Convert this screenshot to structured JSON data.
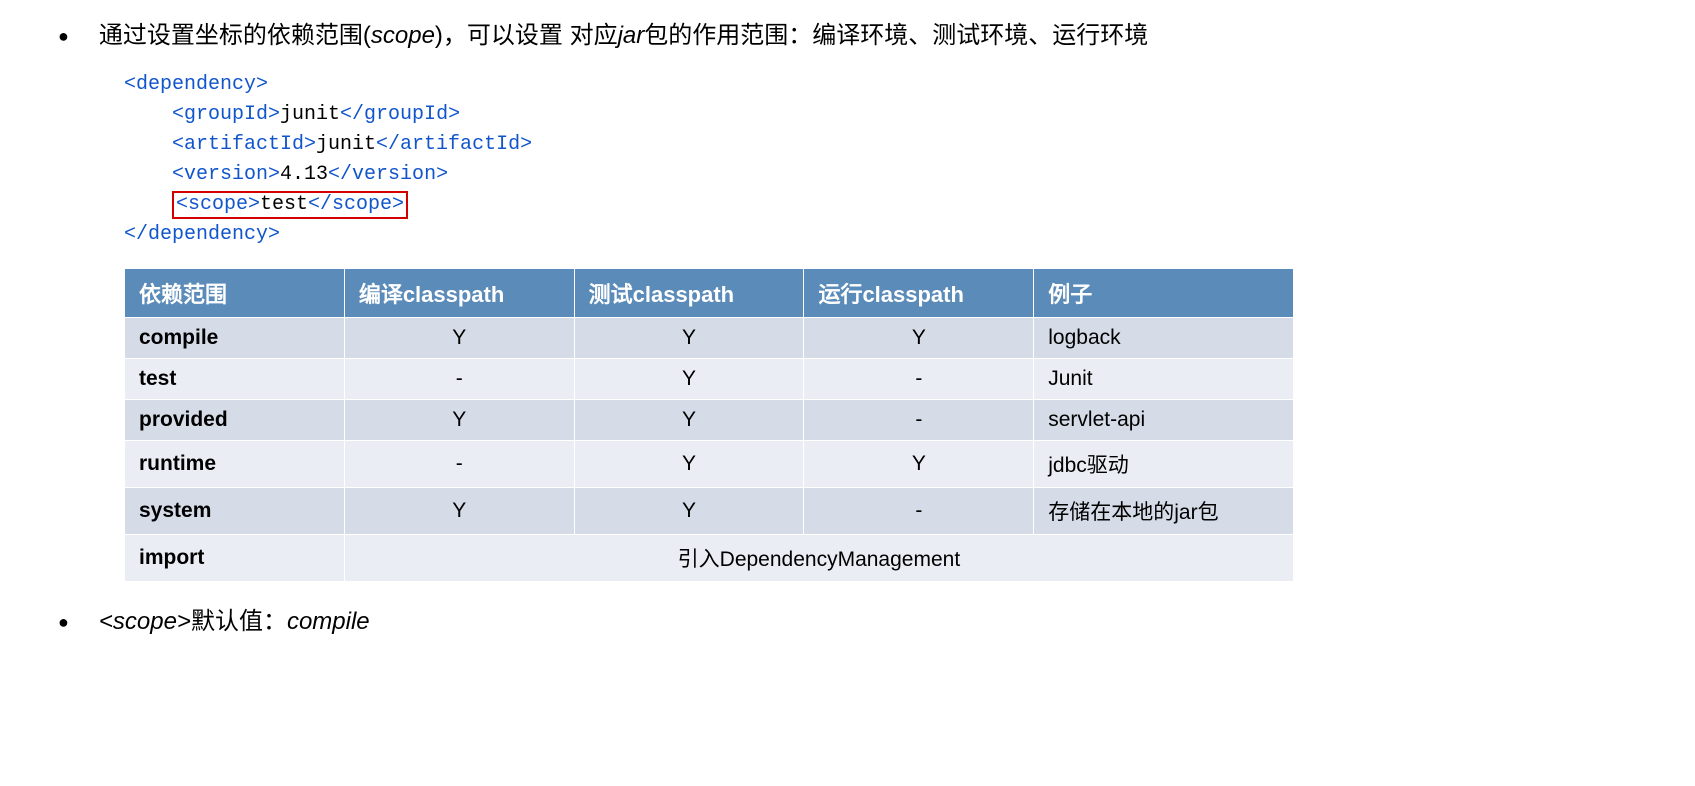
{
  "bullet1": {
    "text_pre": "通过设置坐标的依赖范围(",
    "scope_word": "scope",
    "text_mid": ")，可以设置 对应",
    "jar_word": "jar",
    "text_post": "包的作用范围：编译环境、测试环境、运行环境"
  },
  "code": {
    "line1_open": "<dependency>",
    "line2_pre": "    <groupId>",
    "line2_val": "junit",
    "line2_post": "</groupId>",
    "line3_pre": "    <artifactId>",
    "line3_val": "junit",
    "line3_post": "</artifactId>",
    "line4_pre": "    <version>",
    "line4_val": "4.13",
    "line4_post": "</version>",
    "line5_indent": "    ",
    "line5_open": "<scope>",
    "line5_val": "test",
    "line5_close": "</scope>",
    "line6_close": "</dependency>"
  },
  "table": {
    "headers": {
      "h0": "依赖范围",
      "h1": "编译classpath",
      "h2": "测试classpath",
      "h3": "运行classpath",
      "h4": "例子"
    },
    "rows": {
      "r0": {
        "scope": "compile",
        "c1": "Y",
        "c2": "Y",
        "c3": "Y",
        "ex": "logback"
      },
      "r1": {
        "scope": "test",
        "c1": "-",
        "c2": "Y",
        "c3": "-",
        "ex": "Junit"
      },
      "r2": {
        "scope": "provided",
        "c1": "Y",
        "c2": "Y",
        "c3": "-",
        "ex": "servlet-api"
      },
      "r3": {
        "scope": "runtime",
        "c1": "-",
        "c2": "Y",
        "c3": "Y",
        "ex": "jdbc驱动"
      },
      "r4": {
        "scope": "system",
        "c1": "Y",
        "c2": "Y",
        "c3": "-",
        "ex": "存储在本地的jar包"
      },
      "r5": {
        "scope": "import",
        "merged": "引入DependencyManagement"
      }
    },
    "colors": {
      "header_bg": "#5b8bb8",
      "header_fg": "#ffffff",
      "row_odd_bg": "#d5dce7",
      "row_even_bg": "#eaedf3",
      "border": "#ffffff"
    }
  },
  "bullet2": {
    "pre": "<scope>",
    "mid": "默认值：",
    "val": "compile"
  }
}
